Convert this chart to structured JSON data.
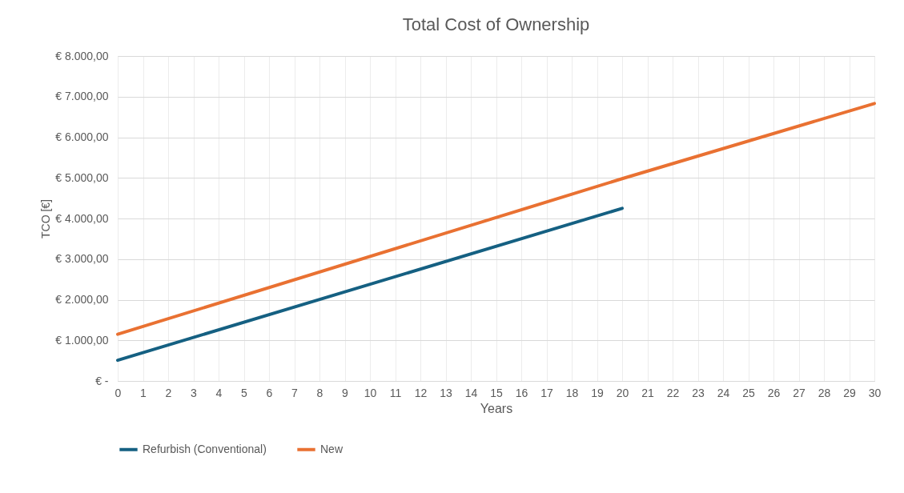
{
  "chart_data": {
    "type": "line",
    "title": "Total Cost of Ownership",
    "xlabel": "Years",
    "ylabel": "TCO [€]",
    "series": [
      {
        "name": "Refurbish (Conventional)",
        "color": "#156082",
        "x": [
          0,
          20
        ],
        "values": [
          510,
          4250
        ]
      },
      {
        "name": "New",
        "color": "#e97132",
        "x": [
          0,
          20,
          30
        ],
        "values": [
          1150,
          4980,
          6830
        ]
      }
    ],
    "xlim": [
      0,
      30
    ],
    "xticks": [
      0,
      1,
      2,
      3,
      4,
      5,
      6,
      7,
      8,
      9,
      10,
      11,
      12,
      13,
      14,
      15,
      16,
      17,
      18,
      19,
      20,
      21,
      22,
      23,
      24,
      25,
      26,
      27,
      28,
      29,
      30
    ],
    "ylim": [
      0,
      8000
    ],
    "yticks": [
      {
        "value": 0,
        "label": "€ -"
      },
      {
        "value": 1000,
        "label": "€ 1.000,00"
      },
      {
        "value": 2000,
        "label": "€ 2.000,00"
      },
      {
        "value": 3000,
        "label": "€ 3.000,00"
      },
      {
        "value": 4000,
        "label": "€ 4.000,00"
      },
      {
        "value": 5000,
        "label": "€ 5.000,00"
      },
      {
        "value": 6000,
        "label": "€ 6.000,00"
      },
      {
        "value": 7000,
        "label": "€ 7.000,00"
      },
      {
        "value": 8000,
        "label": "€ 8.000,00"
      }
    ],
    "grid": true,
    "legend": "bottom",
    "marker": "none",
    "line_style": "solid"
  }
}
